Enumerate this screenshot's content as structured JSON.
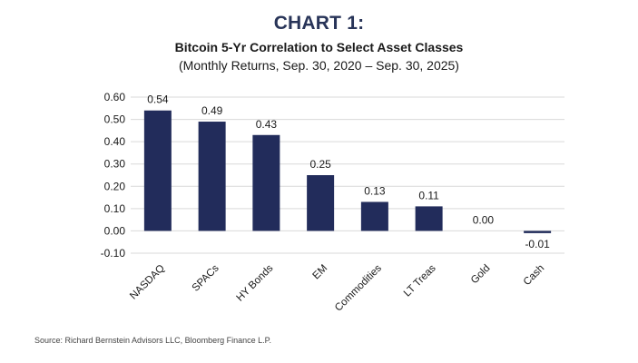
{
  "header": {
    "label": "CHART 1:",
    "title": "Bitcoin 5-Yr Correlation to Select Asset Classes",
    "subtitle": "(Monthly Returns, Sep. 30, 2020 – Sep. 30, 2025)"
  },
  "source": "Source: Richard Bernstein Advisors LLC, Bloomberg Finance L.P.",
  "colors": {
    "title": "#283458",
    "bar": "#222c5b",
    "grid": "#d9d9d9"
  },
  "chart_data": {
    "type": "bar",
    "categories": [
      "NASDAQ",
      "SPACs",
      "HY Bonds",
      "EM",
      "Commodities",
      "LT Treas",
      "Gold",
      "Cash"
    ],
    "values": [
      0.54,
      0.49,
      0.43,
      0.25,
      0.13,
      0.11,
      0.0,
      -0.01
    ],
    "value_labels": [
      "0.54",
      "0.49",
      "0.43",
      "0.25",
      "0.13",
      "0.11",
      "0.00",
      "-0.01"
    ],
    "ylim": [
      -0.1,
      0.6
    ],
    "yticks": [
      -0.1,
      0.0,
      0.1,
      0.2,
      0.3,
      0.4,
      0.5,
      0.6
    ],
    "ytick_labels": [
      "-0.10",
      "0.00",
      "0.10",
      "0.20",
      "0.30",
      "0.40",
      "0.50",
      "0.60"
    ],
    "grid": true,
    "legend": false
  }
}
